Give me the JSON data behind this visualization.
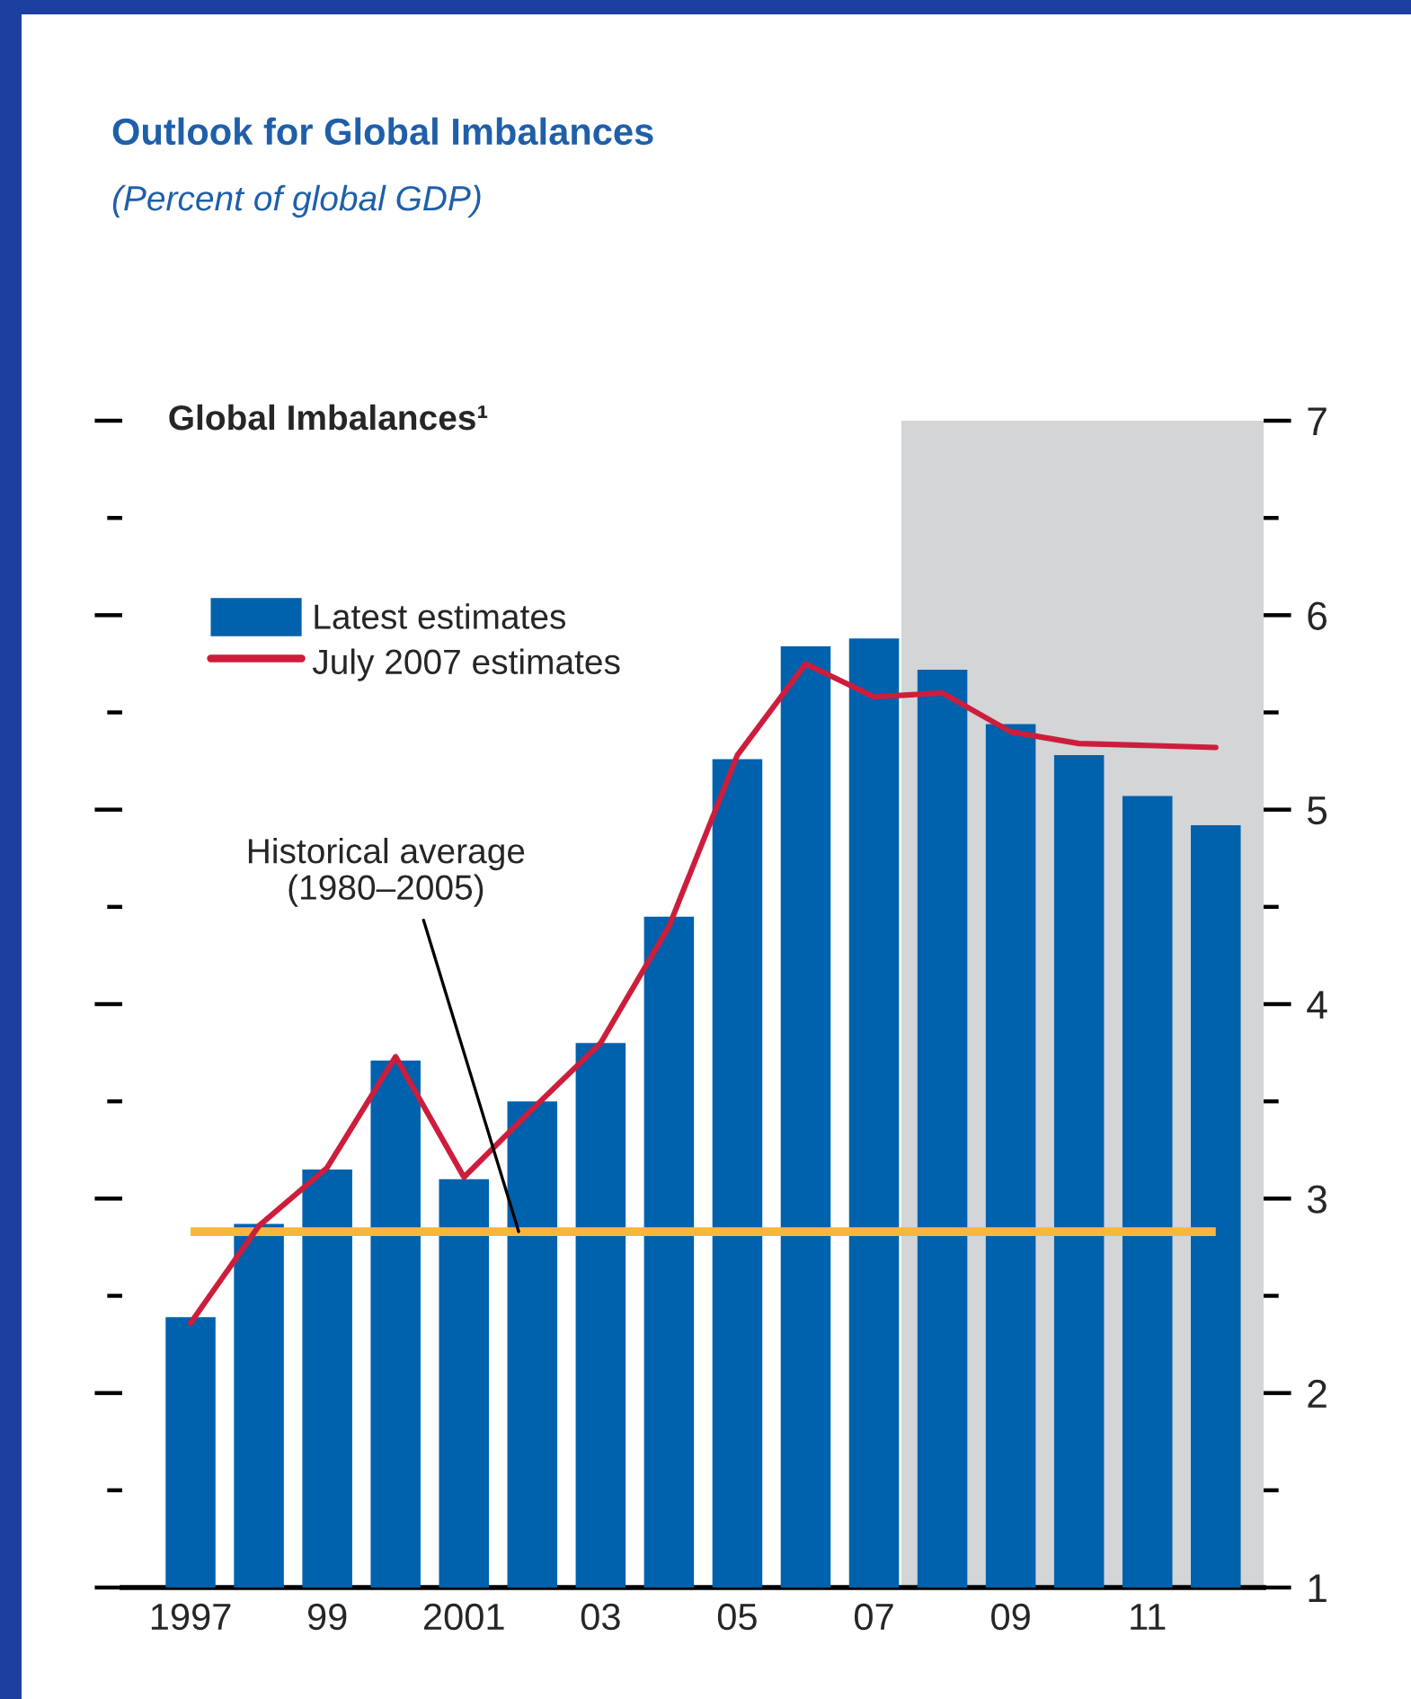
{
  "chart_data": {
    "type": "bar",
    "title": "Outlook for Global Imbalances",
    "subtitle": "(Percent of global GDP)",
    "ylabel": "Global Imbalances¹",
    "x": [
      1997,
      1998,
      1999,
      2000,
      2001,
      2002,
      2003,
      2004,
      2005,
      2006,
      2007,
      2008,
      2009,
      2010,
      2011,
      2012
    ],
    "series": [
      {
        "name": "Latest estimates",
        "color": "#0061ad",
        "values": [
          2.39,
          2.87,
          3.15,
          3.71,
          3.1,
          3.5,
          3.8,
          4.45,
          5.26,
          5.84,
          5.88,
          5.72,
          5.44,
          5.28,
          5.07,
          4.92
        ]
      },
      {
        "name": "July 2007 estimates",
        "type": "line",
        "color": "#cc1e3c",
        "values": [
          2.36,
          2.86,
          3.16,
          3.73,
          3.11,
          3.46,
          3.8,
          4.4,
          5.28,
          5.75,
          5.58,
          5.6,
          5.4,
          5.34,
          5.33,
          5.32
        ]
      }
    ],
    "xlim": [
      1996,
      2012.7
    ],
    "xticks": [
      1997,
      {
        "value": 1999,
        "label": "99"
      },
      2001,
      {
        "value": 2003,
        "label": "03"
      },
      {
        "value": 2005,
        "label": "05"
      },
      {
        "value": 2007,
        "label": "07"
      },
      {
        "value": 2009,
        "label": "09"
      },
      {
        "value": 2011,
        "label": "11"
      }
    ],
    "ylim": [
      1,
      7
    ],
    "yticks": [
      1,
      {
        "value": 1.5,
        "label": null
      },
      2,
      {
        "value": 2.5,
        "label": null
      },
      3,
      {
        "value": 3.5,
        "label": null
      },
      4,
      {
        "value": 4.5,
        "label": null
      },
      5,
      {
        "value": 5.5,
        "label": null
      },
      6,
      {
        "value": 6.5,
        "label": null
      },
      7
    ],
    "ref_lines": [
      {
        "axis": "y",
        "value": 2.83,
        "label": "Historical average\n(1980–2005)",
        "color": "#f7b73f"
      }
    ],
    "bands": [
      {
        "axis": "x",
        "from": 2007.4,
        "to": 2012.7,
        "color": "#d4d5d7"
      }
    ],
    "legend": "top left"
  }
}
